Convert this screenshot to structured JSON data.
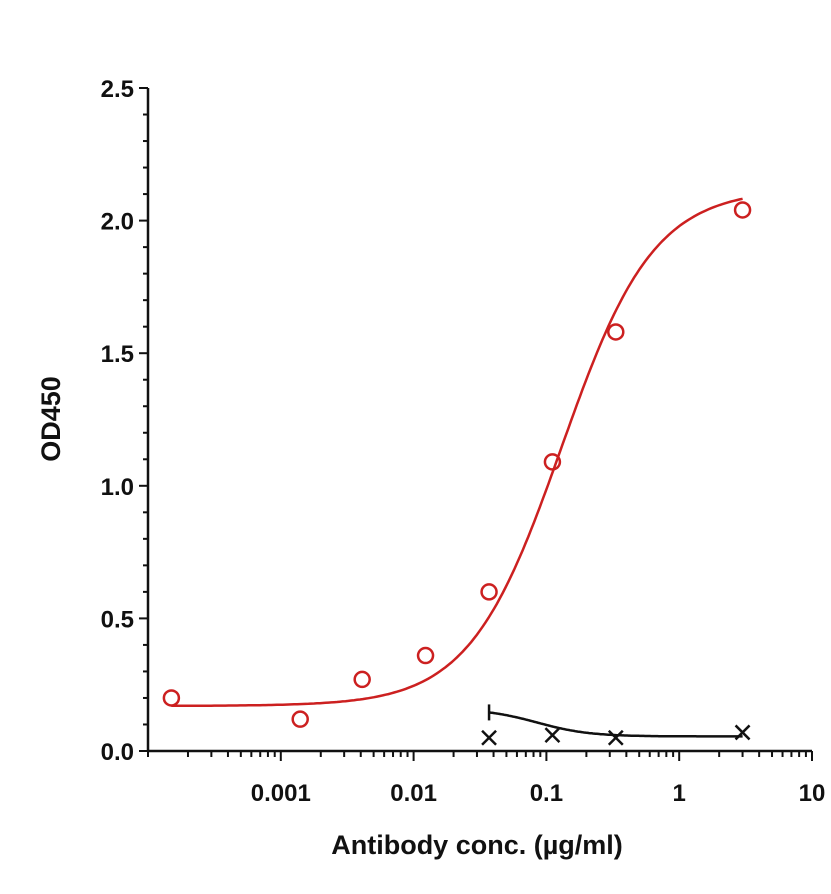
{
  "chart_data": {
    "type": "scatter",
    "title": "",
    "xlabel": "Antibody conc. (µg/ml)",
    "ylabel": "OD450",
    "x_scale": "log",
    "xlim": [
      0.0001,
      10
    ],
    "ylim": [
      0,
      2.5
    ],
    "x_ticks": [
      {
        "value": 0.001,
        "label": "0.001"
      },
      {
        "value": 0.01,
        "label": "0.01"
      },
      {
        "value": 0.1,
        "label": "0.1"
      },
      {
        "value": 1,
        "label": "1"
      },
      {
        "value": 10,
        "label": "10"
      }
    ],
    "y_ticks": [
      {
        "value": 0,
        "label": "0.0"
      },
      {
        "value": 0.5,
        "label": "0.5"
      },
      {
        "value": 1.0,
        "label": "1.0"
      },
      {
        "value": 1.5,
        "label": "1.5"
      },
      {
        "value": 2.0,
        "label": "2.0"
      },
      {
        "value": 2.5,
        "label": "2.5"
      }
    ],
    "grid": false,
    "series": [
      {
        "color": "#cc2020",
        "marker": "circle",
        "x": [
          0.00015,
          0.0014,
          0.0041,
          0.0123,
          0.037,
          0.111,
          0.333,
          3.0
        ],
        "y": [
          0.2,
          0.12,
          0.27,
          0.36,
          0.6,
          1.09,
          1.58,
          2.04
        ],
        "fit": {
          "type": "4PL",
          "bottom": 0.17,
          "top": 2.12,
          "ec50": 0.13,
          "hill": 1.25
        }
      },
      {
        "color": "#111111",
        "marker": "x",
        "x": [
          0.037,
          0.111,
          0.333,
          3.0
        ],
        "y": [
          0.05,
          0.06,
          0.05,
          0.07
        ],
        "fit": {
          "type": "decay",
          "bottom": 0.055,
          "top": 0.16,
          "ec50": 0.085,
          "hill": -2.2
        }
      }
    ]
  }
}
